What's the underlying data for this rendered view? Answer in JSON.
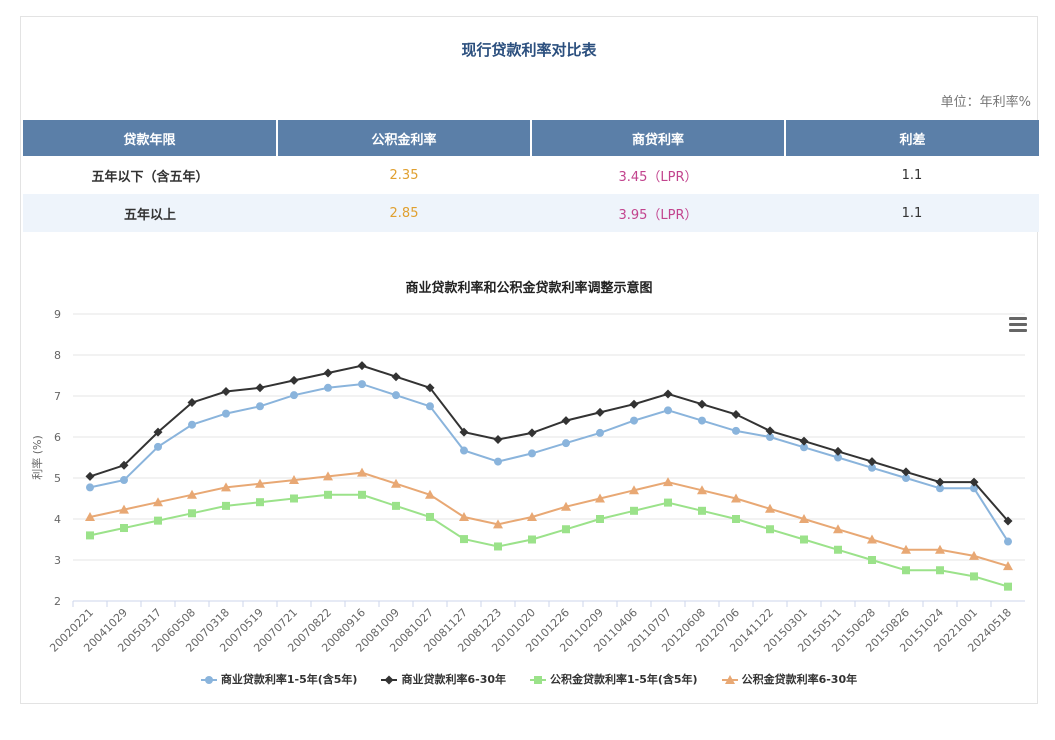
{
  "page": {
    "title": "现行贷款利率对比表",
    "unit": "单位：年利率%"
  },
  "table": {
    "headers": [
      "贷款年限",
      "公积金利率",
      "商贷利率",
      "利差"
    ],
    "rows": [
      {
        "term": "五年以下（含五年）",
        "fund": "2.35",
        "commercial": "3.45（LPR）",
        "diff": "1.1"
      },
      {
        "term": "五年以上",
        "fund": "2.85",
        "commercial": "3.95（LPR）",
        "diff": "1.1"
      }
    ]
  },
  "chart_data": {
    "type": "line",
    "title": "商业贷款利率和公积金贷款利率调整示意图",
    "xlabel": "",
    "ylabel": "利率 (%)",
    "ylim": [
      2,
      9
    ],
    "yticks": [
      "2",
      "3",
      "4",
      "5",
      "6",
      "7",
      "8",
      "9"
    ],
    "grid": true,
    "legend_position": "bottom",
    "categories": [
      "20020221",
      "20041029",
      "20050317",
      "20060508",
      "20070318",
      "20070519",
      "20070721",
      "20070822",
      "20080916",
      "20081009",
      "20081027",
      "20081127",
      "20081223",
      "20101020",
      "20101226",
      "20110209",
      "20110406",
      "20110707",
      "20120608",
      "20120706",
      "20141122",
      "20150301",
      "20150511",
      "20150628",
      "20150826",
      "20151024",
      "20221001",
      "20240518"
    ],
    "series": [
      {
        "name": "商业贷款利率1-5年(含5年)",
        "color": "#8ab4dc",
        "marker": "circle",
        "values": [
          4.77,
          4.95,
          5.76,
          6.3,
          6.57,
          6.75,
          7.02,
          7.2,
          7.29,
          7.02,
          6.75,
          5.67,
          5.4,
          5.6,
          5.85,
          6.1,
          6.4,
          6.65,
          6.4,
          6.15,
          6.0,
          5.75,
          5.5,
          5.25,
          5.0,
          4.75,
          4.75,
          3.45
        ]
      },
      {
        "name": "商业贷款利率6-30年",
        "color": "#333333",
        "marker": "diamond",
        "values": [
          5.04,
          5.31,
          6.12,
          6.84,
          7.11,
          7.2,
          7.38,
          7.56,
          7.74,
          7.47,
          7.2,
          6.12,
          5.94,
          6.1,
          6.4,
          6.6,
          6.8,
          7.05,
          6.8,
          6.55,
          6.15,
          5.9,
          5.65,
          5.4,
          5.15,
          4.9,
          4.9,
          3.95
        ]
      },
      {
        "name": "公积金贷款利率1-5年(含5年)",
        "color": "#9be28a",
        "marker": "square",
        "values": [
          3.6,
          3.78,
          3.96,
          4.14,
          4.32,
          4.41,
          4.5,
          4.59,
          4.59,
          4.32,
          4.05,
          3.51,
          3.33,
          3.5,
          3.75,
          4.0,
          4.2,
          4.4,
          4.2,
          4.0,
          3.75,
          3.5,
          3.25,
          3.0,
          2.75,
          2.75,
          2.6,
          2.35
        ]
      },
      {
        "name": "公积金贷款利率6-30年",
        "color": "#e8a874",
        "marker": "triangle",
        "values": [
          4.05,
          4.23,
          4.41,
          4.59,
          4.77,
          4.86,
          4.95,
          5.04,
          5.13,
          4.86,
          4.59,
          4.05,
          3.87,
          4.05,
          4.3,
          4.5,
          4.7,
          4.9,
          4.7,
          4.5,
          4.25,
          4.0,
          3.75,
          3.5,
          3.25,
          3.25,
          3.1,
          2.85
        ]
      }
    ]
  }
}
